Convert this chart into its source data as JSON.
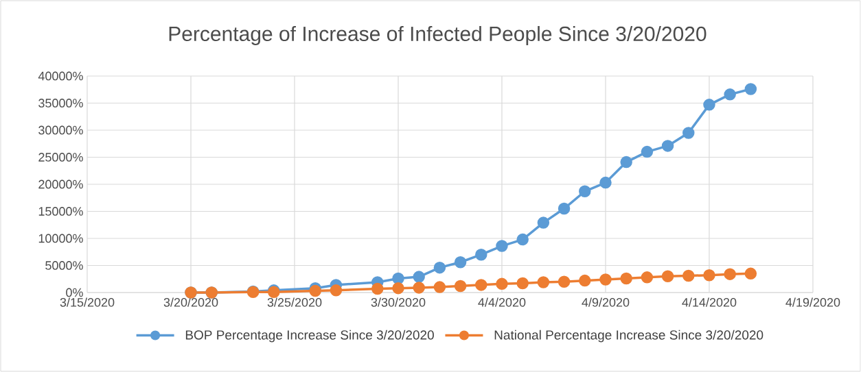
{
  "chart_data": {
    "type": "line",
    "title": "Percentage of Increase of Infected People Since 3/20/2020",
    "x": [
      "2020-03-20",
      "2020-03-21",
      "2020-03-23",
      "2020-03-24",
      "2020-03-26",
      "2020-03-27",
      "2020-03-29",
      "2020-03-30",
      "2020-03-31",
      "2020-04-01",
      "2020-04-02",
      "2020-04-03",
      "2020-04-04",
      "2020-04-05",
      "2020-04-06",
      "2020-04-07",
      "2020-04-08",
      "2020-04-09",
      "2020-04-10",
      "2020-04-11",
      "2020-04-12",
      "2020-04-13",
      "2020-04-14",
      "2020-04-15",
      "2020-04-16"
    ],
    "series": [
      {
        "name": "BOP Percentage Increase Since 3/20/2020",
        "color": "#5b9bd5",
        "values": [
          0,
          0,
          200,
          400,
          800,
          1400,
          1900,
          2600,
          2900,
          4600,
          5600,
          7000,
          8600,
          9800,
          12900,
          15500,
          18700,
          20300,
          24100,
          26000,
          27100,
          29500,
          34700,
          36600,
          37600
        ]
      },
      {
        "name": "National Percentage Increase Since 3/20/2020",
        "color": "#ed7d31",
        "values": [
          0,
          0,
          100,
          100,
          300,
          400,
          700,
          800,
          900,
          1000,
          1200,
          1400,
          1600,
          1700,
          1900,
          2000,
          2200,
          2400,
          2600,
          2800,
          3000,
          3100,
          3200,
          3400,
          3500
        ]
      }
    ],
    "xlim": [
      "2020-03-15",
      "2020-04-19"
    ],
    "xticks": [
      {
        "value": "2020-03-15",
        "label": "3/15/2020"
      },
      {
        "value": "2020-03-20",
        "label": "3/20/2020"
      },
      {
        "value": "2020-03-25",
        "label": "3/25/2020"
      },
      {
        "value": "2020-03-30",
        "label": "3/30/2020"
      },
      {
        "value": "2020-04-04",
        "label": "4/4/2020"
      },
      {
        "value": "2020-04-09",
        "label": "4/9/2020"
      },
      {
        "value": "2020-04-14",
        "label": "4/14/2020"
      },
      {
        "value": "2020-04-19",
        "label": "4/19/2020"
      }
    ],
    "ylim": [
      0,
      40000
    ],
    "yticks": [
      {
        "value": 0,
        "label": "0%"
      },
      {
        "value": 5000,
        "label": "5000%"
      },
      {
        "value": 10000,
        "label": "10000%"
      },
      {
        "value": 15000,
        "label": "15000%"
      },
      {
        "value": 20000,
        "label": "20000%"
      },
      {
        "value": 25000,
        "label": "25000%"
      },
      {
        "value": 30000,
        "label": "30000%"
      },
      {
        "value": 35000,
        "label": "35000%"
      },
      {
        "value": 40000,
        "label": "40000%"
      }
    ],
    "grid": true,
    "legend": "bottom",
    "marker": "circle",
    "line_style": "solid"
  }
}
